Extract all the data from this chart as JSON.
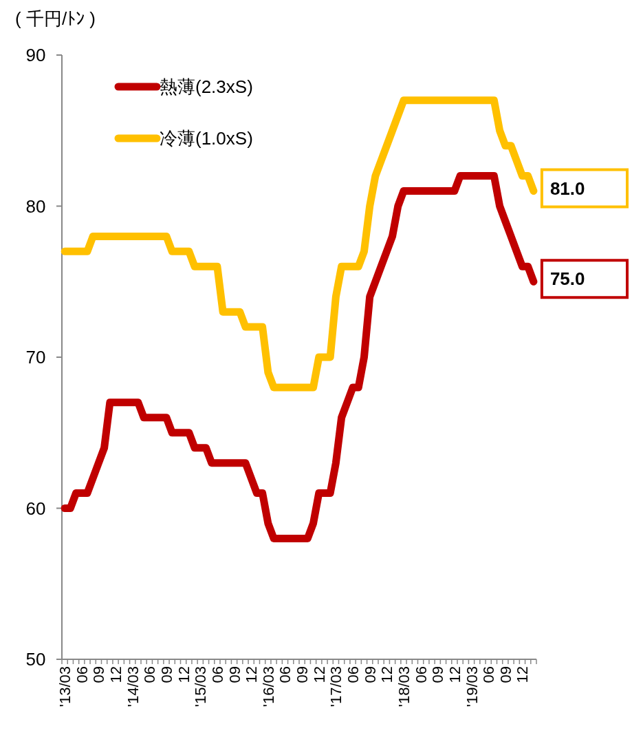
{
  "chart_data": {
    "type": "line",
    "ylabel": "( 千円/ﾄﾝ )",
    "legend": "top left",
    "line_style": "solid",
    "marker": "none",
    "ylim": [
      50,
      90
    ],
    "yticks": [
      50,
      60,
      70,
      80,
      90
    ],
    "categories": [
      "'13/03",
      null,
      null,
      "06",
      null,
      null,
      "09",
      null,
      null,
      "12",
      null,
      null,
      "'14/03",
      null,
      null,
      "06",
      null,
      null,
      "09",
      null,
      null,
      "12",
      null,
      null,
      "'15/03",
      null,
      null,
      "06",
      null,
      null,
      "09",
      null,
      null,
      "12",
      null,
      null,
      "'16/03",
      null,
      null,
      "06",
      null,
      null,
      "09",
      null,
      null,
      "12",
      null,
      null,
      "'17/03",
      null,
      null,
      "06",
      null,
      null,
      "09",
      null,
      null,
      "12",
      null,
      null,
      "'18/03",
      null,
      null,
      "06",
      null,
      null,
      "09",
      null,
      null,
      "12",
      null,
      null,
      "'19/03",
      null,
      null,
      "06",
      null,
      null,
      "09",
      null,
      null,
      "12",
      null,
      null
    ],
    "series": [
      {
        "name": "熱薄(2.3xS)",
        "color": "#c00000",
        "values": [
          60,
          60,
          61,
          61,
          61,
          62,
          63,
          64,
          67,
          67,
          67,
          67,
          67,
          67,
          66,
          66,
          66,
          66,
          66,
          65,
          65,
          65,
          65,
          64,
          64,
          64,
          63,
          63,
          63,
          63,
          63,
          63,
          63,
          62,
          61,
          61,
          59,
          58,
          58,
          58,
          58,
          58,
          58,
          58,
          59,
          61,
          61,
          61,
          63,
          66,
          67,
          68,
          68,
          70,
          74,
          75,
          76,
          77,
          78,
          80,
          81,
          81,
          81,
          81,
          81,
          81,
          81,
          81,
          81,
          81,
          82,
          82,
          82,
          82,
          82,
          82,
          82,
          80,
          79,
          78,
          77,
          76,
          76,
          75
        ],
        "value_labels": [
          null,
          null,
          null,
          null,
          null,
          null,
          null,
          null,
          null,
          null,
          null,
          null,
          null,
          null,
          null,
          null,
          null,
          null,
          null,
          null,
          null,
          null,
          null,
          null,
          null,
          null,
          null,
          null,
          null,
          null,
          null,
          null,
          null,
          null,
          null,
          null,
          null,
          null,
          null,
          null,
          null,
          null,
          null,
          null,
          null,
          null,
          null,
          null,
          null,
          null,
          null,
          null,
          null,
          null,
          null,
          null,
          null,
          null,
          null,
          null,
          null,
          null,
          null,
          null,
          null,
          null,
          null,
          null,
          null,
          null,
          null,
          null,
          null,
          null,
          null,
          null,
          null,
          null,
          null,
          null,
          null,
          null,
          null,
          "75.0"
        ]
      },
      {
        "name": "冷薄(1.0xS)",
        "color": "#ffc000",
        "values": [
          77,
          77,
          77,
          77,
          77,
          78,
          78,
          78,
          78,
          78,
          78,
          78,
          78,
          78,
          78,
          78,
          78,
          78,
          78,
          77,
          77,
          77,
          77,
          76,
          76,
          76,
          76,
          76,
          73,
          73,
          73,
          73,
          72,
          72,
          72,
          72,
          69,
          68,
          68,
          68,
          68,
          68,
          68,
          68,
          68,
          70,
          70,
          70,
          74,
          76,
          76,
          76,
          76,
          77,
          80,
          82,
          83,
          84,
          85,
          86,
          87,
          87,
          87,
          87,
          87,
          87,
          87,
          87,
          87,
          87,
          87,
          87,
          87,
          87,
          87,
          87,
          87,
          85,
          84,
          84,
          83,
          82,
          82,
          81
        ],
        "value_labels": [
          null,
          null,
          null,
          null,
          null,
          null,
          null,
          null,
          null,
          null,
          null,
          null,
          null,
          null,
          null,
          null,
          null,
          null,
          null,
          null,
          null,
          null,
          null,
          null,
          null,
          null,
          null,
          null,
          null,
          null,
          null,
          null,
          null,
          null,
          null,
          null,
          null,
          null,
          null,
          null,
          null,
          null,
          null,
          null,
          null,
          null,
          null,
          null,
          null,
          null,
          null,
          null,
          null,
          null,
          null,
          null,
          null,
          null,
          null,
          null,
          null,
          null,
          null,
          null,
          null,
          null,
          null,
          null,
          null,
          null,
          null,
          null,
          null,
          null,
          null,
          null,
          null,
          null,
          null,
          null,
          null,
          null,
          null,
          "81.0"
        ]
      }
    ]
  }
}
